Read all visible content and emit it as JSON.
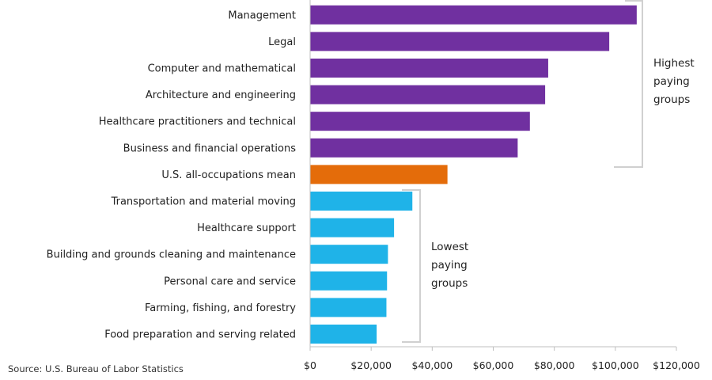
{
  "chart_data": {
    "type": "bar",
    "orientation": "horizontal",
    "title": "",
    "xlabel": "",
    "ylabel": "",
    "xlim": [
      0,
      120000
    ],
    "x_ticks": [
      "$0",
      "$20,000",
      "$40,000",
      "$60,000",
      "$80,000",
      "$100,000",
      "$120,000"
    ],
    "categories": [
      "Management",
      "Legal",
      "Computer and mathematical",
      "Architecture and engineering",
      "Healthcare practitioners and technical",
      "Business and financial operations",
      "U.S. all-occupations mean",
      "Transportation and  material moving",
      "Healthcare support",
      "Building and grounds  cleaning and maintenance",
      "Personal care and service",
      "Farming, fishing, and forestry",
      "Food preparation and serving related"
    ],
    "values": [
      107000,
      98000,
      78000,
      77000,
      72000,
      68000,
      45000,
      33500,
      27500,
      25500,
      25200,
      25000,
      21800
    ],
    "bar_groups": [
      "high",
      "high",
      "high",
      "high",
      "high",
      "high",
      "mean",
      "low",
      "low",
      "low",
      "low",
      "low",
      "low"
    ],
    "grid": false,
    "colors": {
      "high": "#7030a0",
      "mean": "#e46c0a",
      "low": "#1fb3e8"
    },
    "annotations": {
      "highest": [
        "Highest",
        "paying",
        "groups"
      ],
      "lowest": [
        "Lowest",
        "paying",
        "groups"
      ]
    },
    "source": "Source: U.S. Bureau of Labor Statistics"
  }
}
